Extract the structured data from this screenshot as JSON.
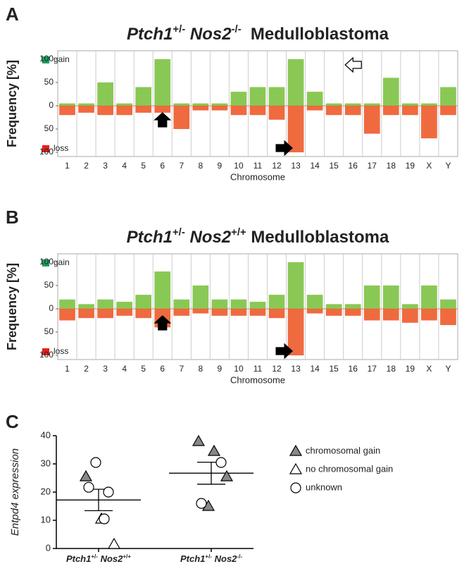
{
  "chart_data": [
    {
      "type": "cnv",
      "label": "A",
      "title_parts": [
        {
          "text": "Ptch1",
          "style": "italic"
        },
        {
          "text": "+/-",
          "style": "sup"
        },
        {
          "text": " Nos2",
          "style": "italic"
        },
        {
          "text": "-/-",
          "style": "sup"
        },
        {
          "text": "  Medulloblastoma",
          "style": "plain"
        }
      ],
      "ylabel": "Frequency [%]",
      "xlabel": "Chromosome",
      "categories": [
        "1",
        "2",
        "3",
        "4",
        "5",
        "6",
        "7",
        "8",
        "9",
        "10",
        "11",
        "12",
        "13",
        "14",
        "15",
        "16",
        "17",
        "18",
        "19",
        "X",
        "Y"
      ],
      "ylim": [
        -109,
        118
      ],
      "yticks": [
        100,
        50,
        0,
        {
          "value": -50,
          "label": "50"
        },
        {
          "value": -100,
          "label": "100"
        }
      ],
      "series": [
        {
          "name": "gain",
          "color": "#7dc242",
          "legend_color": "#1aa05a",
          "values": [
            5,
            5,
            50,
            5,
            40,
            100,
            5,
            5,
            5,
            30,
            40,
            40,
            100,
            30,
            5,
            5,
            5,
            60,
            5,
            5,
            40
          ]
        },
        {
          "name": "loss",
          "color": "#ee5a2a",
          "legend_color": "#e8201c",
          "values": [
            -20,
            -15,
            -20,
            -20,
            -15,
            -15,
            -50,
            -10,
            -10,
            -20,
            -20,
            -30,
            -100,
            -10,
            -20,
            -20,
            -60,
            -20,
            -20,
            -70,
            -20
          ]
        }
      ]
    },
    {
      "type": "cnv",
      "label": "B",
      "title_parts": [
        {
          "text": "Ptch1",
          "style": "italic"
        },
        {
          "text": "+/-",
          "style": "sup"
        },
        {
          "text": " Nos2",
          "style": "italic"
        },
        {
          "text": "+/+",
          "style": "sup"
        },
        {
          "text": " Medulloblastoma",
          "style": "plain"
        }
      ],
      "ylabel": "Frequency [%]",
      "xlabel": "Chromosome",
      "categories": [
        "1",
        "2",
        "3",
        "4",
        "5",
        "6",
        "7",
        "8",
        "9",
        "10",
        "11",
        "12",
        "13",
        "14",
        "15",
        "16",
        "17",
        "18",
        "19",
        "X",
        "Y"
      ],
      "ylim": [
        -109,
        118
      ],
      "yticks": [
        100,
        50,
        0,
        {
          "value": -50,
          "label": "50"
        },
        {
          "value": -100,
          "label": "100"
        }
      ],
      "series": [
        {
          "name": "gain",
          "color": "#7dc242",
          "legend_color": "#1aa05a",
          "values": [
            20,
            10,
            20,
            15,
            30,
            80,
            20,
            50,
            20,
            20,
            15,
            30,
            100,
            30,
            10,
            10,
            50,
            50,
            10,
            50,
            20
          ]
        },
        {
          "name": "loss",
          "color": "#ee5a2a",
          "legend_color": "#e8201c",
          "values": [
            -25,
            -20,
            -20,
            -15,
            -20,
            -40,
            -15,
            -10,
            -15,
            -15,
            -15,
            -20,
            -100,
            -10,
            -15,
            -15,
            -25,
            -25,
            -30,
            -25,
            -35
          ]
        }
      ]
    },
    {
      "type": "scatter",
      "label": "C",
      "ylabel": "Entpd4 expression",
      "categories": [
        [
          {
            "text": "Ptch1",
            "style": "italic"
          },
          {
            "text": "+/-",
            "style": "sup"
          },
          {
            "text": " Nos2",
            "style": "italic"
          },
          {
            "text": "+/+",
            "style": "sup"
          }
        ],
        [
          {
            "text": "Ptch1",
            "style": "italic"
          },
          {
            "text": "+/-",
            "style": "sup"
          },
          {
            "text": " Nos2",
            "style": "italic"
          },
          {
            "text": "-/-",
            "style": "sup"
          }
        ]
      ],
      "ylim": [
        0,
        40
      ],
      "yticks": [
        0,
        10,
        20,
        30,
        40
      ],
      "series": [
        {
          "name": "chromosomal gain",
          "marker": "triangle",
          "color": "#888888",
          "group": [
            0,
            1,
            1,
            1,
            1
          ],
          "values": [
            25.5,
            38,
            34.5,
            25.5,
            15
          ]
        },
        {
          "name": "no chromosomal gain",
          "marker": "triangle",
          "color": "#ffffff",
          "group": [
            0,
            0
          ],
          "values": [
            10.5,
            1.5
          ]
        },
        {
          "name": "unknown",
          "marker": "circle",
          "color": "#ffffff",
          "group": [
            0,
            0,
            0,
            0,
            1,
            1
          ],
          "values": [
            30.5,
            20,
            21.7,
            10.5,
            30.5,
            16
          ]
        }
      ],
      "mean": [
        17.2,
        26.7
      ],
      "sem": [
        3.8,
        3.9
      ]
    }
  ]
}
